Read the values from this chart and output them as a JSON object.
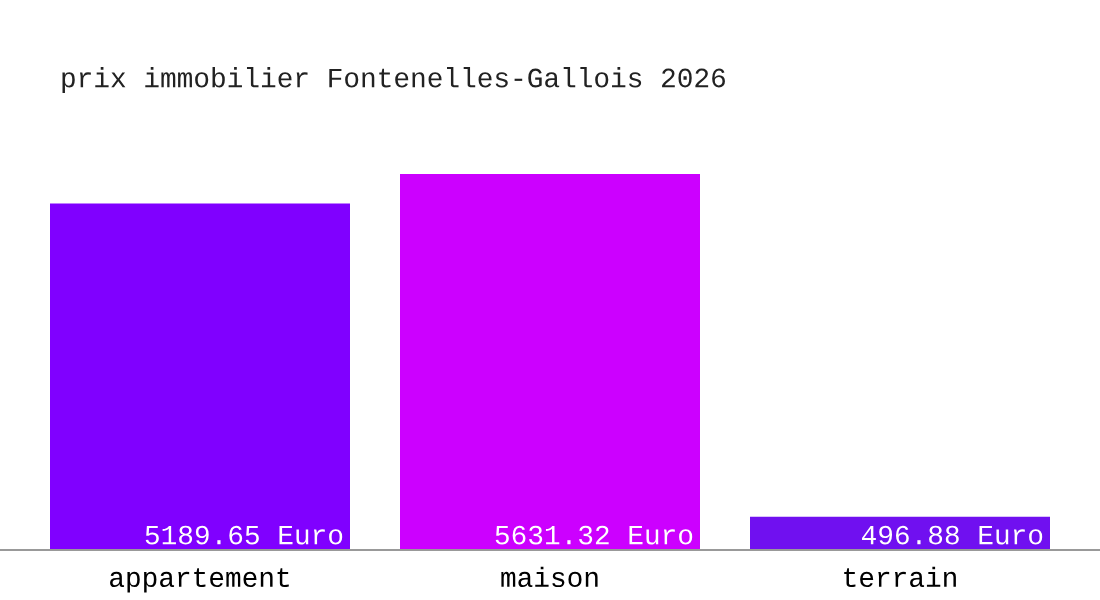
{
  "chart_data": {
    "type": "bar",
    "title": "prix immobilier Fontenelles-Gallois 2026",
    "categories": [
      "appartement",
      "maison",
      "terrain"
    ],
    "values": [
      5189.65,
      5631.32,
      496.88
    ],
    "value_labels": [
      "5189.65 Euro",
      "5631.32 Euro",
      "496.88 Euro"
    ],
    "colors": [
      "#8000ff",
      "#cc00ff",
      "#7010f0"
    ],
    "grid": false
  }
}
